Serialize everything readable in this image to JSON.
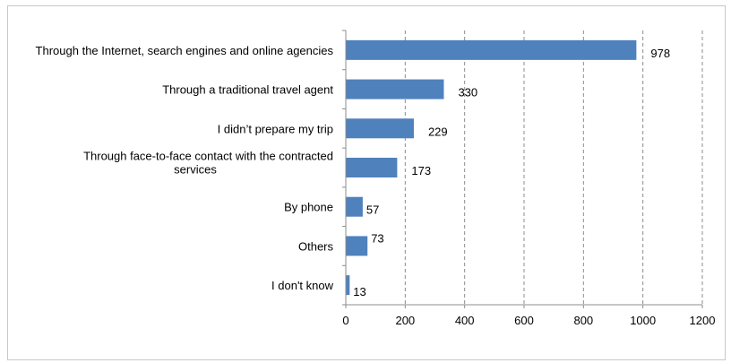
{
  "chart_data": {
    "type": "bar",
    "orientation": "horizontal",
    "categories": [
      [
        "Through the Internet, search engines and online agencies"
      ],
      [
        "Through a traditional travel agent"
      ],
      [
        "I didn’t prepare my trip"
      ],
      [
        "Through face-to-face contact with the contracted",
        "services"
      ],
      [
        "By phone"
      ],
      [
        "Others"
      ],
      [
        "I don't know"
      ]
    ],
    "values": [
      978,
      330,
      229,
      173,
      57,
      73,
      13
    ],
    "value_labels": [
      "978",
      "330",
      "229",
      "173",
      "57",
      "73",
      "13"
    ],
    "xlim": [
      0,
      1200
    ],
    "xticks": [
      0,
      200,
      400,
      600,
      800,
      1000,
      1200
    ],
    "tick_labels": [
      "0",
      "200",
      "400",
      "600",
      "800",
      "1000",
      "1200"
    ],
    "grid": "vertical dashed",
    "bar_color": "#4f81bd",
    "grid_color": "#8c8c8c"
  }
}
